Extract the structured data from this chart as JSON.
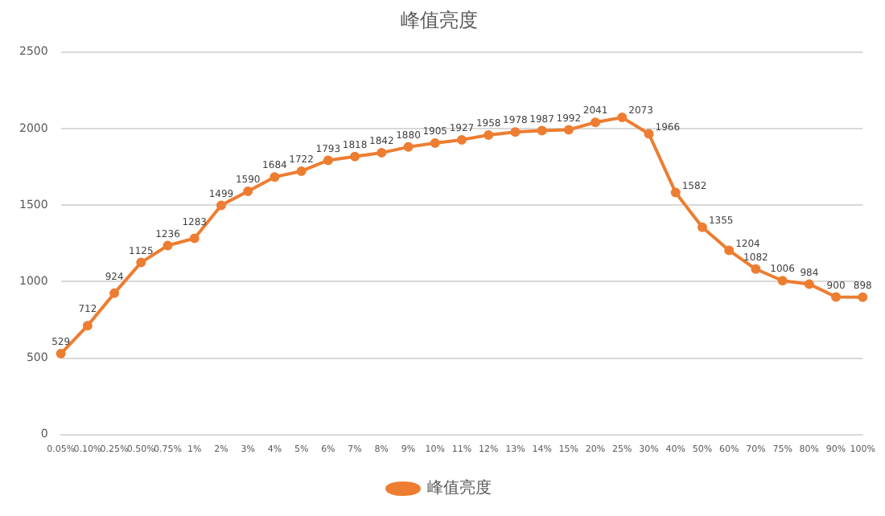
{
  "chart_data": {
    "type": "line",
    "title": "峰值亮度",
    "categories": [
      "0.05%",
      "0.10%",
      "0.25%",
      "0.50%",
      "0.75%",
      "1%",
      "2%",
      "3%",
      "4%",
      "5%",
      "6%",
      "7%",
      "8%",
      "9%",
      "10%",
      "11%",
      "12%",
      "13%",
      "14%",
      "15%",
      "20%",
      "25%",
      "30%",
      "40%",
      "50%",
      "60%",
      "70%",
      "75%",
      "80%",
      "90%",
      "100%"
    ],
    "series": [
      {
        "name": "峰值亮度",
        "color": "#ed7d31",
        "values": [
          529,
          712,
          924,
          1125,
          1236,
          1283,
          1499,
          1590,
          1684,
          1722,
          1793,
          1818,
          1842,
          1880,
          1905,
          1927,
          1958,
          1978,
          1987,
          1992,
          2041,
          2073,
          1966,
          1582,
          1355,
          1204,
          1082,
          1006,
          984,
          900,
          898
        ]
      }
    ],
    "ylim": [
      0,
      2500
    ],
    "yticks": [
      0,
      500,
      1000,
      1500,
      2000,
      2500
    ],
    "grid": "y",
    "legend": "bottom",
    "marker": "circle",
    "line_style": "solid",
    "data_labels": true
  }
}
